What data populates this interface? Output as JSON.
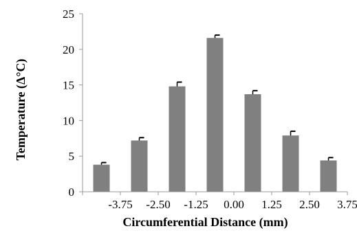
{
  "chart_data": {
    "type": "bar",
    "categories": [
      "-3.75",
      "-2.50",
      "-1.25",
      "0.00",
      "1.25",
      "2.50",
      "3.75"
    ],
    "values": [
      3.8,
      7.2,
      14.8,
      21.6,
      13.7,
      7.9,
      4.4
    ],
    "errors": [
      0.3,
      0.4,
      0.6,
      0.4,
      0.5,
      0.6,
      0.4
    ],
    "xlabel": "Circumferential Distance (mm)",
    "ylabel": "Temperature  (Δ°C)",
    "ylim": [
      0,
      25
    ],
    "yticks": [
      0,
      5,
      10,
      15,
      20,
      25
    ],
    "grid": false,
    "colors": {
      "bar": "#808080",
      "axis": "#999999",
      "error_bar": "#000000"
    }
  }
}
